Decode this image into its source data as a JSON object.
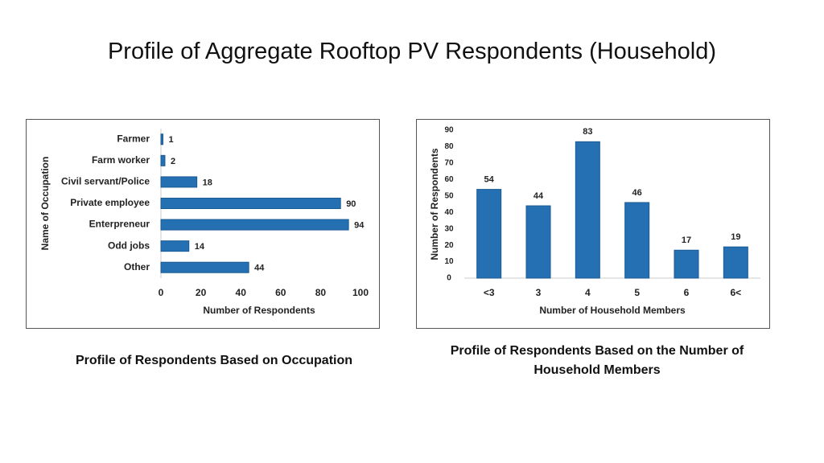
{
  "title": "Profile of Aggregate Rooftop PV Respondents (Household)",
  "chart_data": [
    {
      "type": "bar",
      "horizontal": true,
      "caption": "Profile of Respondents Based on Occupation",
      "categories": [
        "Farmer",
        "Farm worker",
        "Civil servant/Police",
        "Private employee",
        "Enterpreneur",
        "Odd jobs",
        "Other"
      ],
      "values": [
        1,
        2,
        18,
        90,
        94,
        14,
        44
      ],
      "color": "#2470b3",
      "xlim": [
        0,
        100
      ],
      "xticks": [
        0,
        20,
        40,
        60,
        80,
        100
      ],
      "xlabel": "Number of Respondents",
      "ylabel": "Name of Occupation"
    },
    {
      "type": "bar",
      "horizontal": false,
      "caption": "Profile of Respondents Based on the Number of Household Members",
      "categories": [
        "<3",
        "3",
        "4",
        "5",
        "6",
        "6<"
      ],
      "values": [
        54,
        44,
        83,
        46,
        17,
        19
      ],
      "color": "#2470b3",
      "ylim": [
        0,
        90
      ],
      "yticks": [
        0,
        10,
        20,
        30,
        40,
        50,
        60,
        70,
        80,
        90
      ],
      "xlabel": "Number of Household Members",
      "ylabel": "Number of Respondents"
    }
  ]
}
